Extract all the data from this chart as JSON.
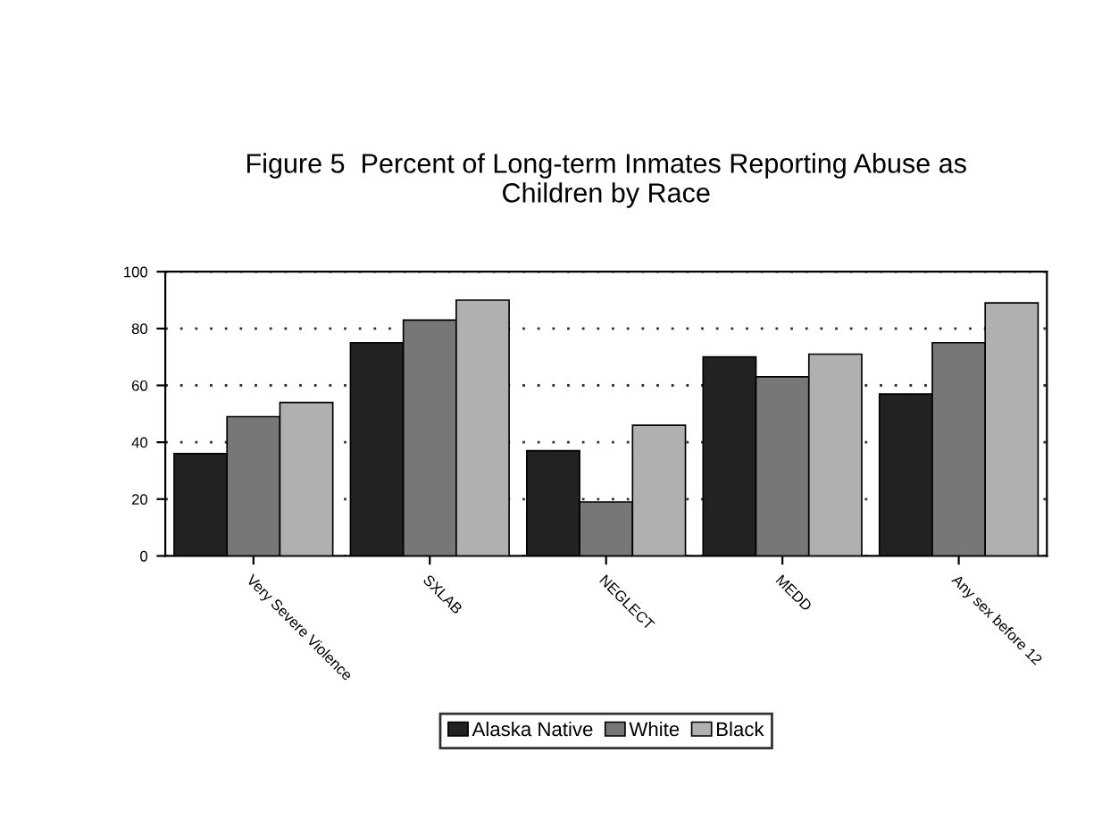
{
  "chart_data": {
    "type": "bar",
    "title": "Figure 5  Percent of Long-term Inmates Reporting Abuse as\nChildren by Race",
    "categories": [
      "Very Severe Violence",
      "SXLAB",
      "NEGLECT",
      "MEDD",
      "Any sex before 12"
    ],
    "series": [
      {
        "name": "Alaska Native",
        "color": "#222222",
        "values": [
          36,
          75,
          37,
          70,
          57
        ]
      },
      {
        "name": "White",
        "color": "#777777",
        "values": [
          49,
          83,
          19,
          63,
          75
        ]
      },
      {
        "name": "Black",
        "color": "#b0b0b0",
        "values": [
          54,
          90,
          46,
          71,
          89
        ]
      }
    ],
    "ylim": [
      0,
      100
    ],
    "yticks": [
      0,
      20,
      40,
      60,
      80,
      100
    ],
    "grid": "y",
    "legend": "bottom"
  }
}
